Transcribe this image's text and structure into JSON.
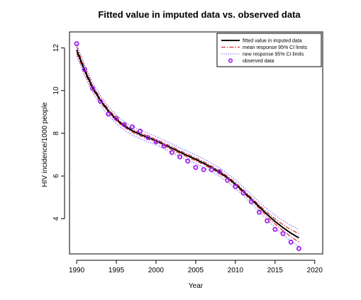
{
  "chart_data": {
    "type": "line",
    "title": "Fitted  value in imputed data vs. observed data",
    "xlabel": "Year",
    "ylabel": "HIV incidence/1000 people",
    "xlim": [
      1989.1,
      2021.0
    ],
    "ylim": [
      2.35,
      12.75
    ],
    "x_ticks": [
      1990,
      1995,
      2000,
      2005,
      2010,
      2015,
      2020
    ],
    "y_ticks": [
      4,
      6,
      8,
      10,
      12
    ],
    "grid": false,
    "legend_position": "top-right",
    "legend": [
      "fitted value in imputed data",
      "mean response 95% CI limits",
      "new response 95% CI limits",
      "observed data"
    ],
    "colors": {
      "fitted": "#000000",
      "mean_ci": "#d62728",
      "new_ci": "#3b3bff",
      "observed": "#a020f0"
    },
    "series": [
      {
        "name": "fitted value in imputed data",
        "style": "solid",
        "x": [
          1990,
          1991,
          1992,
          1993,
          1994,
          1995,
          1996,
          1997,
          1998,
          1999,
          2000,
          2001,
          2002,
          2003,
          2004,
          2005,
          2006,
          2007,
          2008,
          2009,
          2010,
          2011,
          2012,
          2013,
          2014,
          2015,
          2016,
          2017,
          2018
        ],
        "y": [
          11.9,
          10.95,
          10.15,
          9.55,
          9.05,
          8.65,
          8.35,
          8.12,
          7.95,
          7.8,
          7.65,
          7.48,
          7.3,
          7.12,
          6.95,
          6.78,
          6.6,
          6.4,
          6.18,
          5.92,
          5.62,
          5.28,
          4.92,
          4.56,
          4.2,
          3.87,
          3.58,
          3.32,
          3.1
        ]
      },
      {
        "name": "mean response 95% CI limits",
        "style": "dashdot",
        "x": [
          1990,
          1991,
          1992,
          1993,
          1994,
          1995,
          1996,
          1997,
          1998,
          1999,
          2000,
          2001,
          2002,
          2003,
          2004,
          2005,
          2006,
          2007,
          2008,
          2009,
          2010,
          2011,
          2012,
          2013,
          2014,
          2015,
          2016,
          2017,
          2018
        ],
        "lower": [
          11.75,
          10.83,
          10.05,
          9.46,
          8.97,
          8.58,
          8.28,
          8.05,
          7.88,
          7.73,
          7.58,
          7.41,
          7.23,
          7.05,
          6.88,
          6.71,
          6.53,
          6.33,
          6.11,
          5.85,
          5.55,
          5.21,
          4.85,
          4.48,
          4.1,
          3.75,
          3.44,
          3.15,
          2.9
        ],
        "upper": [
          12.05,
          11.07,
          10.25,
          9.64,
          9.13,
          8.72,
          8.42,
          8.19,
          8.02,
          7.87,
          7.72,
          7.55,
          7.37,
          7.19,
          7.02,
          6.85,
          6.67,
          6.47,
          6.25,
          5.99,
          5.69,
          5.35,
          4.99,
          4.64,
          4.3,
          3.99,
          3.72,
          3.49,
          3.3
        ]
      },
      {
        "name": "new response 95% CI limits",
        "style": "dotted",
        "x": [
          1990,
          1991,
          1992,
          1993,
          1994,
          1995,
          1996,
          1997,
          1998,
          1999,
          2000,
          2001,
          2002,
          2003,
          2004,
          2005,
          2006,
          2007,
          2008,
          2009,
          2010,
          2011,
          2012,
          2013,
          2014,
          2015,
          2016,
          2017,
          2018
        ],
        "lower": [
          11.6,
          10.7,
          9.92,
          9.33,
          8.84,
          8.45,
          8.15,
          7.92,
          7.75,
          7.6,
          7.45,
          7.28,
          7.1,
          6.92,
          6.75,
          6.58,
          6.4,
          6.2,
          5.98,
          5.72,
          5.42,
          5.08,
          4.72,
          4.34,
          3.95,
          3.58,
          3.25,
          2.95,
          2.7
        ],
        "upper": [
          12.2,
          11.2,
          10.38,
          9.77,
          9.26,
          8.85,
          8.55,
          8.32,
          8.15,
          8.0,
          7.85,
          7.68,
          7.5,
          7.32,
          7.15,
          6.98,
          6.8,
          6.6,
          6.38,
          6.12,
          5.82,
          5.48,
          5.12,
          4.78,
          4.45,
          4.16,
          3.91,
          3.69,
          3.5
        ]
      },
      {
        "name": "observed data",
        "style": "points",
        "x": [
          1990,
          1991,
          1992,
          1993,
          1994,
          1995,
          1996,
          1997,
          1998,
          1999,
          2000,
          2001,
          2002,
          2003,
          2004,
          2005,
          2006,
          2007,
          2008,
          2009,
          2010,
          2011,
          2012,
          2013,
          2014,
          2015,
          2016,
          2017,
          2018
        ],
        "y": [
          12.2,
          11.0,
          10.1,
          9.5,
          8.9,
          8.7,
          8.4,
          8.3,
          8.1,
          7.8,
          7.6,
          7.4,
          7.1,
          6.9,
          6.7,
          6.4,
          6.3,
          6.3,
          6.2,
          5.8,
          5.5,
          5.2,
          4.8,
          4.3,
          3.9,
          3.5,
          3.3,
          2.9,
          2.6
        ]
      }
    ]
  }
}
